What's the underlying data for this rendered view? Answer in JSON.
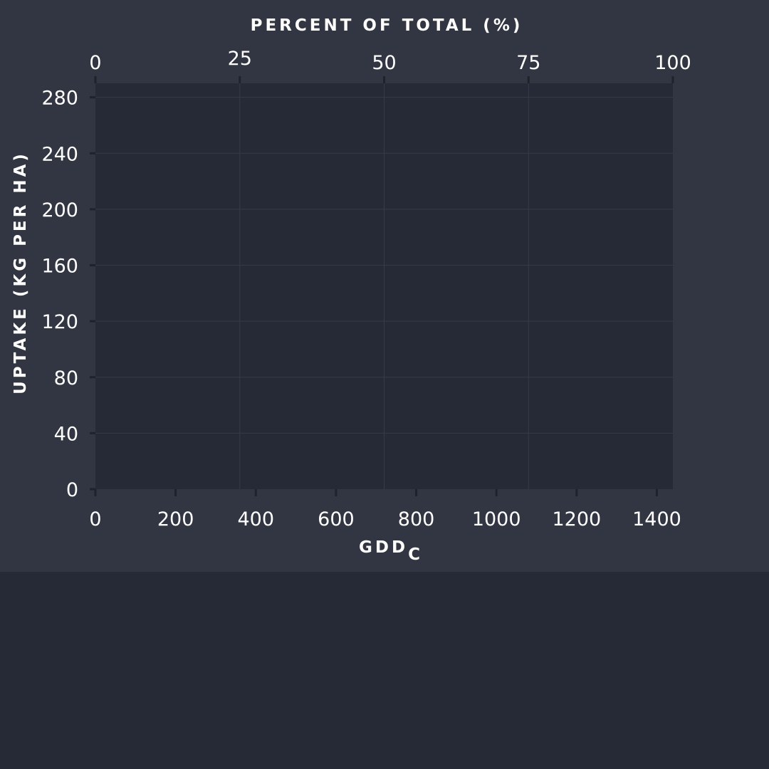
{
  "chart_data": {
    "type": "line",
    "title": "",
    "xlabel": "GDD",
    "xlabel_subscript": "C",
    "ylabel": "UPTAKE  (KG PER HA)",
    "x2label": "PERCENT OF TOTAL (%)",
    "xlim": [
      0,
      1440
    ],
    "ylim": [
      0,
      290
    ],
    "x2lim": [
      0,
      100
    ],
    "x_ticks": [
      0,
      200,
      400,
      600,
      800,
      1000,
      1200,
      1400
    ],
    "y_ticks": [
      0,
      40,
      80,
      120,
      160,
      200,
      240,
      280
    ],
    "x2_ticks": [
      0,
      25,
      50,
      75,
      100
    ],
    "grid": true,
    "series": []
  },
  "colors": {
    "panel": "#313642",
    "plot": "#262a36",
    "grid": "#363b48",
    "text": "#ffffff"
  }
}
